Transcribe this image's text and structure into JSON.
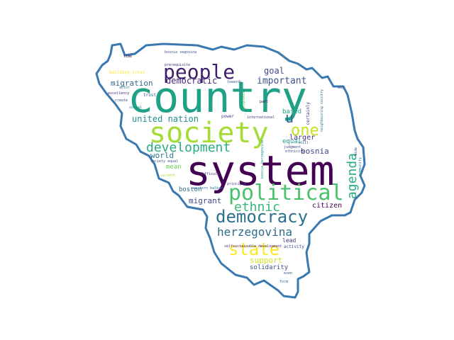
{
  "wordcloud": {
    "outline_color": "#3a78b0",
    "words": [
      {
        "text": "country",
        "color": "#1fa187"
      },
      {
        "text": "system",
        "color": "#440154"
      },
      {
        "text": "society",
        "color": "#a5db36"
      },
      {
        "text": "people",
        "color": "#3f1f6b"
      },
      {
        "text": "political",
        "color": "#4ac16d"
      },
      {
        "text": "democracy",
        "color": "#2c728e"
      },
      {
        "text": "development",
        "color": "#27ad81"
      },
      {
        "text": "one",
        "color": "#c8e020"
      },
      {
        "text": "state",
        "color": "#fde725"
      },
      {
        "text": "ethnic",
        "color": "#35b779"
      },
      {
        "text": "herzegovina",
        "color": "#2f6b8e"
      },
      {
        "text": "agenda",
        "color": "#25ab82"
      },
      {
        "text": "u",
        "color": "#31688e"
      },
      {
        "text": "democratic",
        "color": "#482979"
      },
      {
        "text": "important",
        "color": "#3b528b"
      },
      {
        "text": "goal",
        "color": "#3e4989"
      },
      {
        "text": "migration",
        "color": "#31688e"
      },
      {
        "text": "united nation",
        "color": "#21908d"
      },
      {
        "text": "world",
        "color": "#2c728e"
      },
      {
        "text": "mean",
        "color": "#6ece58"
      },
      {
        "text": "boston",
        "color": "#2c728e"
      },
      {
        "text": "migrant",
        "color": "#3e4989"
      },
      {
        "text": "bosnia",
        "color": "#414487"
      },
      {
        "text": "larger",
        "color": "#46327e"
      },
      {
        "text": "equal",
        "color": "#1f9e89"
      },
      {
        "text": "based",
        "color": "#22a785"
      },
      {
        "text": "citizen",
        "color": "#440154"
      },
      {
        "text": "support",
        "color": "#d2e21b"
      },
      {
        "text": "solidarity",
        "color": "#3b528b"
      },
      {
        "text": "lead",
        "color": "#443983"
      },
      {
        "text": "activity",
        "color": "#3e4989"
      },
      {
        "text": "building trust",
        "color": "#fde725"
      },
      {
        "text": "bosnia segovina",
        "color": "#3b528b"
      },
      {
        "text": "prerequisite",
        "color": "#482878"
      },
      {
        "text": "time",
        "color": "#440154"
      },
      {
        "text": "towards",
        "color": "#3b528b"
      },
      {
        "text": "trust",
        "color": "#31688e"
      },
      {
        "text": "excellency",
        "color": "#482979"
      },
      {
        "text": "create",
        "color": "#3e4989"
      },
      {
        "text": "social",
        "color": "#26828e"
      },
      {
        "text": "society equal",
        "color": "#3b528b"
      },
      {
        "text": "current",
        "color": "#b5de2b"
      },
      {
        "text": "power",
        "color": "#3e4989"
      },
      {
        "text": "international",
        "color": "#443a83"
      },
      {
        "text": "principle",
        "color": "#3e4989"
      },
      {
        "text": "difficult",
        "color": "#46337f"
      },
      {
        "text": "western balkan",
        "color": "#2c728e"
      },
      {
        "text": "selfsustainable development",
        "color": "#482878"
      },
      {
        "text": "even",
        "color": "#3b528b"
      },
      {
        "text": "form",
        "color": "#31688e"
      },
      {
        "text": "part",
        "color": "#440154"
      },
      {
        "text": "judgment",
        "color": "#3e4989"
      },
      {
        "text": "certainly",
        "color": "#482979"
      },
      {
        "text": "neighbour",
        "color": "#52c569"
      },
      {
        "text": "neighbouring country",
        "color": "#2c728e"
      },
      {
        "text": "ethnicity",
        "color": "#3b528b"
      },
      {
        "text": "still",
        "color": "#31688e"
      },
      {
        "text": "bosnia herzegovina",
        "color": "#21908d"
      },
      {
        "text": "may",
        "color": "#3b528b"
      },
      {
        "text": "actor",
        "color": "#2c728e"
      },
      {
        "text": "wide",
        "color": "#3e4989"
      },
      {
        "text": "community",
        "color": "#26828e"
      }
    ]
  }
}
